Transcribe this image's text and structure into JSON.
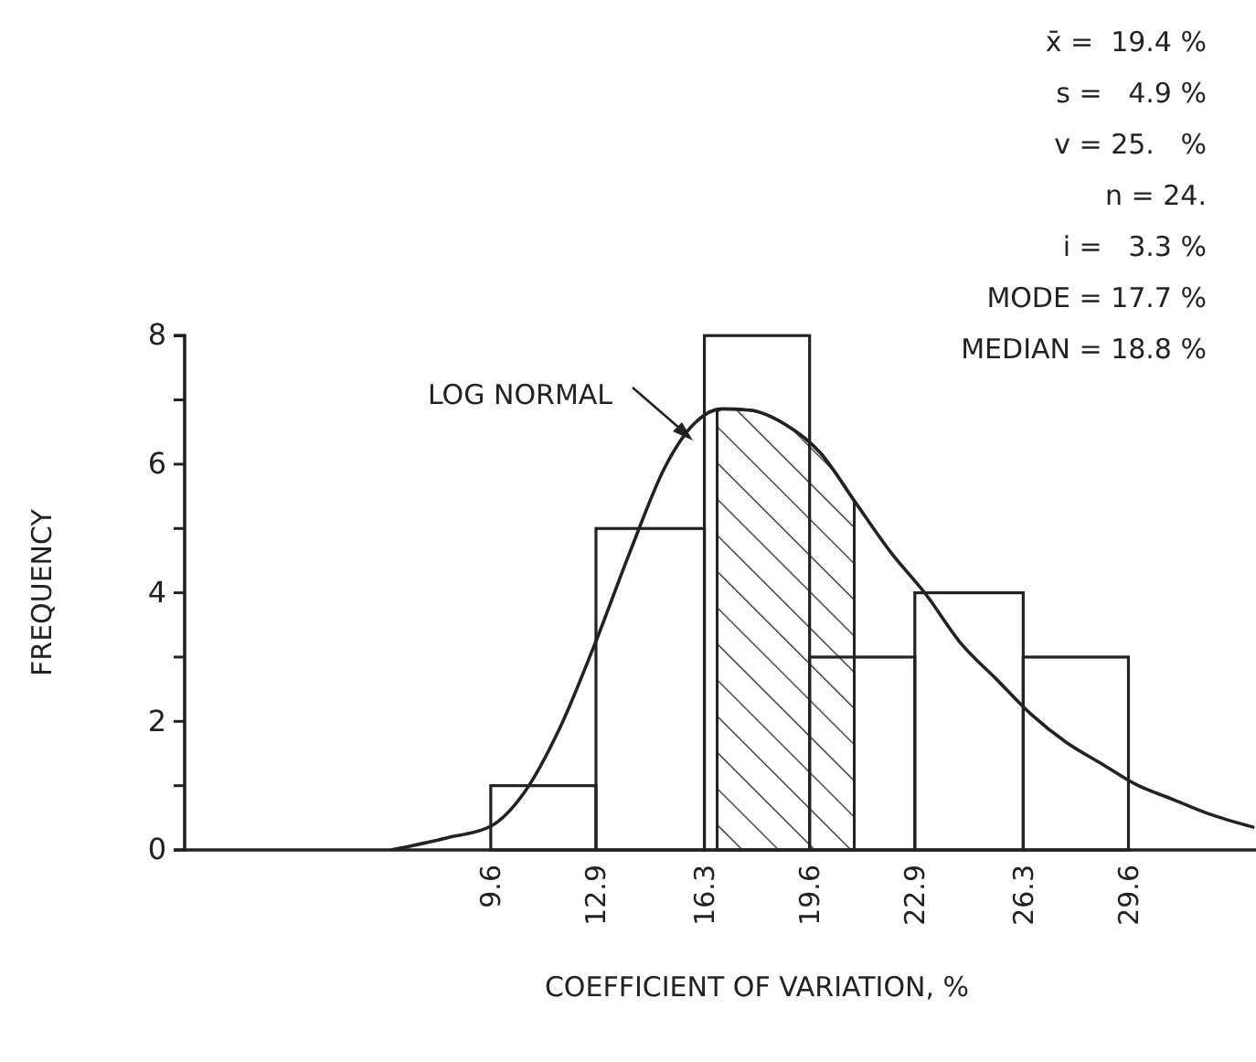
{
  "chart_data": {
    "type": "histogram",
    "xlabel": "COEFFICIENT OF VARIATION, %",
    "ylabel": "FREQUENCY",
    "bins": [
      9.6,
      12.9,
      16.3,
      19.6,
      22.9,
      26.3,
      29.6
    ],
    "values": [
      1,
      5,
      8,
      3,
      4,
      3
    ],
    "series": [
      {
        "type": "line",
        "name": "LOG NORMAL",
        "x": [
          6.47,
          8.23,
          9.6,
          10.66,
          11.76,
          12.87,
          13.97,
          15.07,
          15.96,
          16.84,
          17.72,
          18.83,
          19.93,
          21.03,
          22.13,
          23.24,
          24.35,
          25.45,
          26.55,
          27.66,
          28.76,
          29.87,
          30.97,
          32.07,
          33.55
        ],
        "values": [
          0,
          0.19,
          0.37,
          0.9,
          1.89,
          3.21,
          4.64,
          5.96,
          6.62,
          6.86,
          6.84,
          6.62,
          6.18,
          5.41,
          4.64,
          3.98,
          3.21,
          2.66,
          2.11,
          1.67,
          1.34,
          1.01,
          0.79,
          0.57,
          0.35
        ]
      }
    ],
    "bands": [
      {
        "axis": "x",
        "from": 16.7,
        "to": 21.0
      }
    ],
    "xlim": [
      0,
      33.6
    ],
    "ylim": [
      0,
      8
    ],
    "xticks": [
      9.6,
      12.9,
      16.3,
      19.6,
      22.9,
      26.3,
      29.6
    ],
    "yticks": [
      0,
      {
        "value": 1,
        "label": null
      },
      2,
      {
        "value": 3,
        "label": null
      },
      4,
      {
        "value": 5,
        "label": null
      },
      6,
      {
        "value": 7,
        "label": null
      },
      8
    ],
    "annotations": [
      "x̄ =  19.4 %",
      "s =   4.9 %",
      "v = 25.   %",
      "n = 24.",
      "i =   3.3 %",
      "MODE = 17.7 %",
      "MEDIAN = 18.8 %"
    ]
  }
}
